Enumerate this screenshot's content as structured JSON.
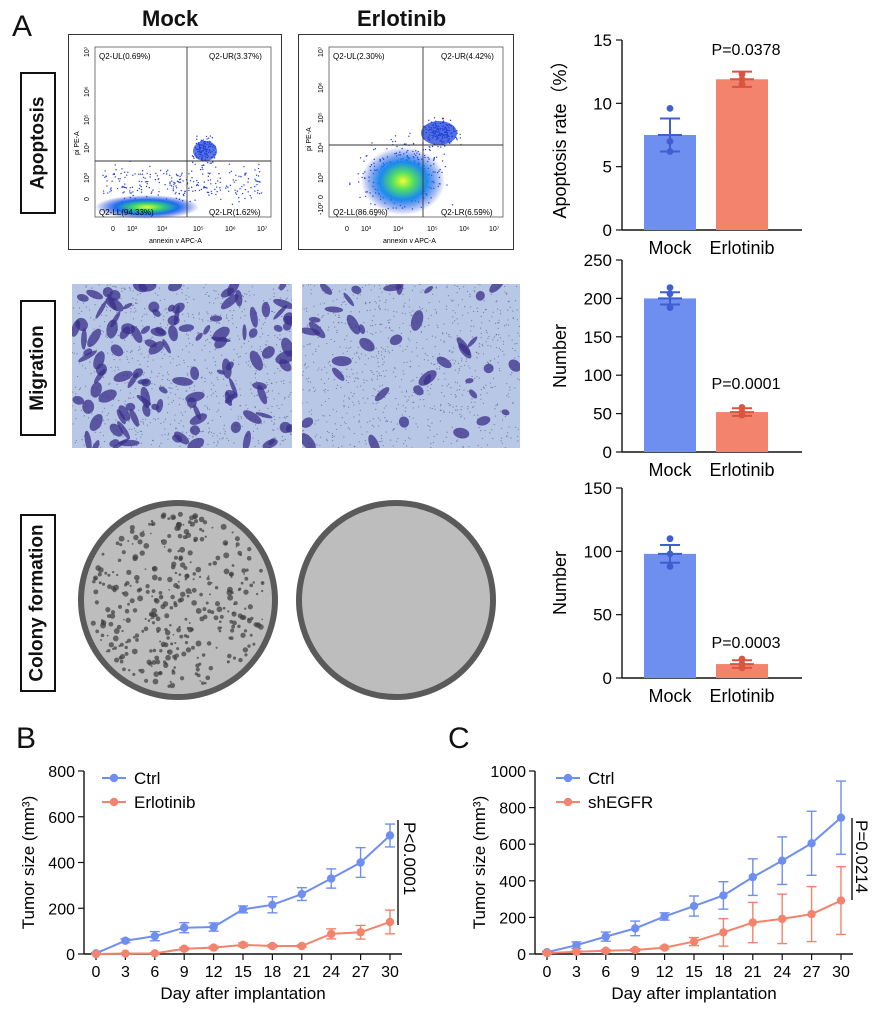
{
  "panel_labels": {
    "a": "A",
    "b": "B",
    "c": "C"
  },
  "column_titles": {
    "mock": "Mock",
    "erlotinib": "Erlotinib"
  },
  "row_labels": {
    "apoptosis": "Apoptosis",
    "migration": "Migration",
    "colony": "Colony formation"
  },
  "flow_mock": {
    "ul": "Q2-UL(0.69%)",
    "ur": "Q2-UR(3.37%)",
    "ll": "Q2-LL(94.33%)",
    "lr": "Q2-LR(1.62%)",
    "xlabel": "annexin v APC-A",
    "ylabel": "pi PE-A",
    "xticks": [
      "0",
      "10³",
      "10⁴",
      "10⁵",
      "10⁶",
      "10⁷"
    ],
    "yticks": [
      "0",
      "10³",
      "10⁴",
      "10⁵",
      "10⁶",
      "10⁷"
    ]
  },
  "flow_erl": {
    "ul": "Q2-UL(2.30%)",
    "ur": "Q2-UR(4.42%)",
    "ll": "Q2-LL(86.69%)",
    "lr": "Q2-LR(6.59%)",
    "xlabel": "annexin v APC-A",
    "ylabel": "pi PE-A",
    "xticks": [
      "0",
      "10³",
      "10⁴",
      "10⁵",
      "10⁶",
      "10⁷"
    ],
    "yticks": [
      "-10³",
      "0",
      "10³",
      "10⁴",
      "10⁵",
      "10⁶",
      "10⁷"
    ]
  },
  "colors": {
    "blue": "#6f8ff0",
    "red": "#f4836e",
    "blue_dark": "#3f5fd0",
    "red_dark": "#d8553f"
  },
  "chart_data": [
    {
      "type": "bar",
      "id": "apoptosis",
      "categories": [
        "Mock",
        "Erlotinib"
      ],
      "values": [
        7.5,
        11.9
      ],
      "errors": [
        1.3,
        0.6
      ],
      "points": [
        [
          6.2,
          7.0,
          9.6
        ],
        [
          11.5,
          11.9,
          12.3
        ]
      ],
      "ylabel": "Apoptosis rate（%）",
      "ylim": [
        0,
        15
      ],
      "yticks": [
        0,
        5,
        10,
        15
      ],
      "annotation": "P=0.0378"
    },
    {
      "type": "bar",
      "id": "migration",
      "categories": [
        "Mock",
        "Erlotinib"
      ],
      "values": [
        200,
        52
      ],
      "errors": [
        8,
        5
      ],
      "points": [
        [
          188,
          206,
          214
        ],
        [
          48,
          52,
          58
        ]
      ],
      "ylabel": "Number",
      "ylim": [
        0,
        250
      ],
      "yticks": [
        0,
        50,
        100,
        150,
        200,
        250
      ],
      "annotation": "P=0.0001"
    },
    {
      "type": "bar",
      "id": "colony",
      "categories": [
        "Mock",
        "Erlotinib"
      ],
      "values": [
        98,
        11
      ],
      "errors": [
        7,
        3
      ],
      "points": [
        [
          88,
          98,
          110
        ],
        [
          8,
          11,
          15
        ]
      ],
      "ylabel": "Number",
      "ylim": [
        0,
        150
      ],
      "yticks": [
        0,
        50,
        100,
        150
      ],
      "annotation": "P=0.0003"
    },
    {
      "type": "line",
      "id": "tumorB",
      "x": [
        0,
        3,
        6,
        9,
        12,
        15,
        18,
        21,
        24,
        27,
        30
      ],
      "series": [
        {
          "name": "Ctrl",
          "values": [
            3,
            58,
            78,
            115,
            118,
            195,
            215,
            262,
            330,
            400,
            518
          ],
          "errors": [
            3,
            8,
            20,
            22,
            18,
            15,
            35,
            28,
            42,
            65,
            50
          ]
        },
        {
          "name": "Erlotinib",
          "values": [
            0,
            2,
            3,
            23,
            28,
            40,
            35,
            35,
            88,
            95,
            140
          ],
          "errors": [
            0,
            2,
            3,
            6,
            6,
            8,
            6,
            5,
            22,
            30,
            52
          ]
        }
      ],
      "xlabel": "Day after implantation",
      "ylabel": "Tumor size (mm³)",
      "ylim": [
        0,
        800
      ],
      "yticks": [
        0,
        200,
        400,
        600,
        800
      ],
      "annotation": "P<0.0001"
    },
    {
      "type": "line",
      "id": "tumorC",
      "x": [
        0,
        3,
        6,
        9,
        12,
        15,
        18,
        21,
        24,
        27,
        30
      ],
      "series": [
        {
          "name": "Ctrl",
          "values": [
            10,
            48,
            95,
            140,
            205,
            262,
            320,
            420,
            510,
            605,
            745
          ],
          "errors": [
            5,
            18,
            25,
            40,
            20,
            55,
            75,
            100,
            130,
            175,
            200
          ]
        },
        {
          "name": "shEGFR",
          "values": [
            5,
            12,
            18,
            22,
            35,
            68,
            118,
            172,
            192,
            218,
            292
          ],
          "errors": [
            3,
            5,
            6,
            7,
            8,
            22,
            75,
            110,
            135,
            150,
            185
          ]
        }
      ],
      "xlabel": "Day after implantation",
      "ylabel": "Tumor size (mm³)",
      "ylim": [
        0,
        1000
      ],
      "yticks": [
        0,
        200,
        400,
        600,
        800,
        1000
      ],
      "annotation": "P=0.0214"
    }
  ]
}
